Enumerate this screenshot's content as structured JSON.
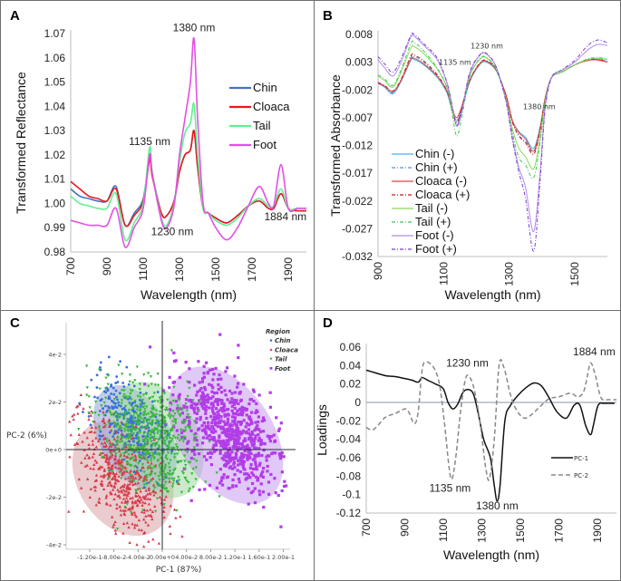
{
  "chart_data": [
    {
      "panel": "A",
      "type": "line",
      "title": "",
      "xlabel": "Wavelength (nm)",
      "ylabel": "Transformed Reflectance",
      "xlim": [
        700,
        2000
      ],
      "ylim": [
        0.98,
        1.07
      ],
      "xticks": [
        "700",
        "900",
        "1100",
        "1300",
        "1500",
        "1700",
        "1900"
      ],
      "yticks": [
        "1.07",
        "1.06",
        "1.05",
        "1.04",
        "1.03",
        "1.02",
        "1.01",
        "1.00",
        "0.99",
        "0.98"
      ],
      "legend_position": "right",
      "annotations": [
        {
          "text": "1380 nm",
          "x": 1380,
          "y": 1.071
        },
        {
          "text": "1135 nm",
          "x": 1135,
          "y": 1.024
        },
        {
          "text": "1230 nm",
          "x": 1260,
          "y": 0.987
        },
        {
          "text": "1884 nm",
          "x": 1884,
          "y": 0.993
        }
      ],
      "x": [
        700,
        750,
        800,
        850,
        900,
        950,
        1000,
        1050,
        1100,
        1135,
        1150,
        1200,
        1230,
        1270,
        1300,
        1330,
        1360,
        1380,
        1400,
        1430,
        1460,
        1500,
        1560,
        1620,
        1680,
        1740,
        1790,
        1820,
        1860,
        1900,
        1950,
        2000
      ],
      "series": [
        {
          "name": "Chin",
          "color": "#4472c4",
          "style": "solid",
          "values": [
            1.006,
            1.003,
            1.002,
            1.001,
            1.001,
            1.007,
            0.991,
            0.996,
            1.002,
            1.019,
            1.012,
            0.996,
            0.995,
            1.001,
            1.013,
            1.02,
            1.022,
            1.03,
            1.015,
            0.998,
            0.996,
            0.994,
            0.992,
            0.995,
            0.999,
            1.001,
            0.998,
            0.998,
            1.004,
            0.998,
            0.997,
            0.997
          ]
        },
        {
          "name": "Cloaca",
          "color": "#e8191c",
          "style": "solid",
          "values": [
            1.009,
            1.006,
            1.003,
            1.002,
            1.001,
            1.006,
            0.991,
            0.995,
            1.001,
            1.018,
            1.011,
            0.996,
            0.995,
            1.001,
            1.013,
            1.02,
            1.022,
            1.03,
            1.015,
            0.998,
            0.996,
            0.994,
            0.992,
            0.995,
            0.999,
            1.001,
            0.998,
            0.998,
            1.004,
            0.998,
            0.997,
            0.997
          ]
        },
        {
          "name": "Tail",
          "color": "#5ef28f",
          "style": "solid",
          "values": [
            1.003,
            1.0,
            0.999,
            0.998,
            0.998,
            1.004,
            0.985,
            0.992,
            1.0,
            1.023,
            1.013,
            0.994,
            0.991,
            1.0,
            1.017,
            1.029,
            1.033,
            1.041,
            1.02,
            0.998,
            0.996,
            0.993,
            0.991,
            0.994,
            0.999,
            1.002,
            0.999,
            0.999,
            1.006,
            0.998,
            0.998,
            0.998
          ]
        },
        {
          "name": "Foot",
          "color": "#e54fe5",
          "style": "solid",
          "values": [
            0.993,
            0.992,
            0.991,
            0.991,
            0.991,
            0.998,
            0.982,
            0.99,
            0.998,
            1.02,
            1.012,
            0.993,
            0.99,
            0.999,
            1.02,
            1.035,
            1.05,
            1.068,
            1.035,
            1.0,
            0.996,
            0.99,
            0.985,
            0.99,
            0.999,
            1.007,
            1.0,
            0.999,
            1.016,
            0.998,
            0.998,
            0.998
          ]
        }
      ]
    },
    {
      "panel": "B",
      "type": "line",
      "title": "",
      "xlabel": "Wavelength (nm)",
      "ylabel": "Transformed Absorbance",
      "xlim": [
        900,
        1600
      ],
      "ylim": [
        -0.032,
        0.008
      ],
      "xticks": [
        "900",
        "1100",
        "1300",
        "1500"
      ],
      "yticks": [
        "0.008",
        "0.003",
        "-0.002",
        "-0.007",
        "-0.012",
        "-0.017",
        "-0.022",
        "-0.027",
        "-0.032"
      ],
      "legend_position": "bottom-left",
      "annotations": [
        {
          "text": "1230 nm",
          "x": 1232,
          "y": 0.0055
        },
        {
          "text": "1135 nm",
          "x": 1135,
          "y": 0.0025
        },
        {
          "text": "1380 nm",
          "x": 1392,
          "y": -0.0055
        }
      ],
      "x": [
        900,
        920,
        945,
        970,
        1000,
        1010,
        1040,
        1080,
        1110,
        1125,
        1140,
        1155,
        1180,
        1210,
        1230,
        1260,
        1290,
        1310,
        1330,
        1350,
        1375,
        1395,
        1410,
        1430,
        1460,
        1500,
        1540,
        1570,
        1600
      ],
      "series": [
        {
          "name": "Chin (-)",
          "color": "#3fb7e8",
          "style": "solid",
          "values": [
            -0.0008,
            -0.0015,
            -0.0027,
            -0.0005,
            0.0033,
            0.0035,
            0.0025,
            0.0003,
            -0.0025,
            -0.0055,
            -0.0075,
            -0.0055,
            -0.0005,
            0.0025,
            0.003,
            0.0015,
            -0.003,
            -0.0075,
            -0.0095,
            -0.0105,
            -0.0125,
            -0.0085,
            -0.0035,
            0.0003,
            0.0012,
            0.0025,
            0.0035,
            0.0035,
            0.003
          ]
        },
        {
          "name": "Chin (+)",
          "color": "#5b8fd6",
          "style": "dashdot",
          "values": [
            -0.0006,
            -0.0013,
            -0.0025,
            -0.0003,
            0.0038,
            0.004,
            0.003,
            0.0006,
            -0.0023,
            -0.0055,
            -0.008,
            -0.0058,
            -0.0004,
            0.0027,
            0.0032,
            0.0016,
            -0.003,
            -0.0077,
            -0.0102,
            -0.0112,
            -0.0133,
            -0.009,
            -0.0036,
            0.0003,
            0.0012,
            0.0025,
            0.0035,
            0.0036,
            0.0032
          ]
        },
        {
          "name": "Cloaca (-)",
          "color": "#e84545",
          "style": "solid",
          "values": [
            -0.0008,
            -0.0013,
            -0.0023,
            -0.0003,
            0.0035,
            0.0037,
            0.0027,
            0.0005,
            -0.0022,
            -0.0052,
            -0.007,
            -0.005,
            -0.0003,
            0.0027,
            0.0032,
            0.0016,
            -0.0028,
            -0.0075,
            -0.0097,
            -0.0108,
            -0.013,
            -0.0088,
            -0.0035,
            0.0003,
            0.0012,
            0.0025,
            0.0033,
            0.0034,
            0.003
          ]
        },
        {
          "name": "Cloaca (+)",
          "color": "#c61a1a",
          "style": "dashdot",
          "values": [
            -0.0007,
            -0.0012,
            -0.0022,
            -0.0001,
            0.0041,
            0.0043,
            0.0032,
            0.0008,
            -0.0021,
            -0.0053,
            -0.0078,
            -0.0055,
            -0.0003,
            0.0028,
            0.0033,
            0.0017,
            -0.0029,
            -0.0078,
            -0.0103,
            -0.0115,
            -0.0136,
            -0.0092,
            -0.0036,
            0.0003,
            0.0012,
            0.0025,
            0.0034,
            0.0035,
            0.0031
          ]
        },
        {
          "name": "Tail (-)",
          "color": "#8bd85a",
          "style": "solid",
          "values": [
            0.0005,
            -0.0003,
            -0.0015,
            0.0012,
            0.0055,
            0.0058,
            0.0045,
            0.0018,
            -0.0015,
            -0.0052,
            -0.0085,
            -0.006,
            0.0005,
            0.0035,
            0.0038,
            0.0018,
            -0.0035,
            -0.009,
            -0.0125,
            -0.014,
            -0.0162,
            -0.0105,
            -0.004,
            0.0003,
            0.0012,
            0.0025,
            0.0035,
            0.0037,
            0.0035
          ]
        },
        {
          "name": "Tail (+)",
          "color": "#3cc95a",
          "style": "dashdot",
          "values": [
            0.0007,
            0.0,
            -0.0012,
            0.0016,
            0.0063,
            0.0066,
            0.005,
            0.002,
            -0.0015,
            -0.0058,
            -0.0103,
            -0.007,
            0.0004,
            0.0036,
            0.0039,
            0.0018,
            -0.0037,
            -0.0097,
            -0.0142,
            -0.0155,
            -0.0178,
            -0.0112,
            -0.0042,
            0.0003,
            0.0012,
            0.0025,
            0.0036,
            0.0038,
            0.0036
          ]
        },
        {
          "name": "Foot (-)",
          "color": "#b48be8",
          "style": "solid",
          "values": [
            0.0035,
            0.002,
            0.0005,
            0.003,
            0.0075,
            0.0077,
            0.006,
            0.0035,
            -0.0007,
            -0.0045,
            -0.0085,
            -0.006,
            0.001,
            0.0042,
            0.0045,
            0.0022,
            -0.0038,
            -0.0105,
            -0.016,
            -0.0195,
            -0.0275,
            -0.0165,
            -0.005,
            0.0003,
            0.0015,
            0.003,
            0.0052,
            0.0062,
            0.006
          ]
        },
        {
          "name": "Foot (+)",
          "color": "#7b3fc8",
          "style": "dashdot",
          "values": [
            0.004,
            0.0027,
            0.0012,
            0.0036,
            0.0078,
            0.008,
            0.0063,
            0.0038,
            -0.0006,
            -0.0045,
            -0.0083,
            -0.0058,
            0.0012,
            0.0043,
            0.0046,
            0.0022,
            -0.004,
            -0.011,
            -0.0168,
            -0.0215,
            -0.031,
            -0.018,
            -0.0055,
            0.0003,
            0.0016,
            0.0033,
            0.006,
            0.007,
            0.0065
          ]
        }
      ]
    },
    {
      "panel": "C",
      "type": "scatter",
      "title": "",
      "xlabel": "PC-1 (87%)",
      "ylabel": "PC-2 (6%)",
      "xlim": [
        -0.126,
        0.202
      ],
      "ylim": [
        -0.042,
        0.052
      ],
      "xticks": [
        {
          "v": -0.12,
          "label": "-1.20e-1"
        },
        {
          "v": -0.08,
          "label": "-8.00e-2"
        },
        {
          "v": -0.04,
          "label": "-4.00e-2"
        },
        {
          "v": 0.0,
          "label": "0.00e+0"
        },
        {
          "v": 0.04,
          "label": "4.00e-2"
        },
        {
          "v": 0.08,
          "label": "8.00e-2"
        },
        {
          "v": 0.12,
          "label": "1.20e-1"
        },
        {
          "v": 0.16,
          "label": "1.60e-1"
        },
        {
          "v": 0.2,
          "label": "2.00e-1"
        }
      ],
      "yticks": [
        {
          "v": 0.04,
          "label": "4e-2"
        },
        {
          "v": 0.02,
          "label": "2e-2"
        },
        {
          "v": 0.0,
          "label": "0e+0"
        },
        {
          "v": -0.02,
          "label": "-2e-2"
        },
        {
          "v": -0.04,
          "label": "-4e-2"
        }
      ],
      "legend_title": "Region",
      "legend_position": "top-right",
      "groups": [
        {
          "name": "Chin",
          "color": "#3b6fe0",
          "marker": "circle",
          "center": [
            -0.055,
            0.012
          ],
          "spread": [
            0.022,
            0.011
          ],
          "count": 260,
          "ellipse": {
            "cx": -0.045,
            "cy": 0.005,
            "rx": 0.058,
            "ry": 0.024,
            "angle": -30,
            "fill": "#8fa3d6"
          }
        },
        {
          "name": "Cloaca",
          "color": "#d63a4a",
          "marker": "triangle-up",
          "center": [
            -0.07,
            -0.01
          ],
          "spread": [
            0.028,
            0.014
          ],
          "count": 520,
          "ellipse": {
            "cx": -0.065,
            "cy": -0.012,
            "rx": 0.075,
            "ry": 0.026,
            "angle": -32,
            "fill": "#d9a0a6"
          }
        },
        {
          "name": "Tail",
          "color": "#38b83a",
          "marker": "triangle-down",
          "center": [
            -0.02,
            0.005
          ],
          "spread": [
            0.035,
            0.013
          ],
          "count": 620,
          "ellipse": {
            "cx": -0.01,
            "cy": 0.004,
            "rx": 0.07,
            "ry": 0.026,
            "angle": -28,
            "fill": "#9fd9a0"
          }
        },
        {
          "name": "Foot",
          "color": "#b23ce8",
          "marker": "square",
          "center": [
            0.11,
            0.008
          ],
          "spread": [
            0.033,
            0.014
          ],
          "count": 720,
          "ellipse": {
            "cx": 0.105,
            "cy": 0.006,
            "rx": 0.078,
            "ry": 0.032,
            "angle": -33,
            "fill": "#c79af0"
          }
        }
      ]
    },
    {
      "panel": "D",
      "type": "line",
      "title": "",
      "xlabel": "Wavelength (nm)",
      "ylabel": "Loadings",
      "xlim": [
        700,
        2000
      ],
      "ylim": [
        -0.12,
        0.06
      ],
      "xticks": [
        "700",
        "900",
        "1100",
        "1300",
        "1500",
        "1700",
        "1900"
      ],
      "yticks": [
        "0.06",
        "0.04",
        "0.02",
        "0",
        "-0.02",
        "-0.04",
        "-0.06",
        "-0.08",
        "-0.1",
        "-0.12"
      ],
      "legend_position": "right",
      "annotations": [
        {
          "text": "1230 nm",
          "x": 1225,
          "y": 0.039
        },
        {
          "text": "1884 nm",
          "x": 1884,
          "y": 0.051
        },
        {
          "text": "1135 nm",
          "x": 1135,
          "y": -0.097
        },
        {
          "text": "1380 nm",
          "x": 1380,
          "y": -0.116
        }
      ],
      "series": [
        {
          "name": "PC-1",
          "color": "#111111",
          "style": "solid",
          "x": [
            700,
            750,
            800,
            850,
            900,
            940,
            970,
            990,
            1020,
            1060,
            1100,
            1125,
            1150,
            1175,
            1200,
            1225,
            1255,
            1280,
            1310,
            1345,
            1365,
            1380,
            1395,
            1420,
            1450,
            1490,
            1530,
            1570,
            1610,
            1650,
            1690,
            1740,
            1780,
            1810,
            1840,
            1865,
            1880,
            1905,
            1940,
            1990
          ],
          "values": [
            0.035,
            0.032,
            0.029,
            0.028,
            0.026,
            0.024,
            0.022,
            0.027,
            0.024,
            0.02,
            0.015,
            0.0,
            -0.007,
            -0.002,
            0.01,
            0.014,
            0.01,
            -0.01,
            -0.04,
            -0.06,
            -0.09,
            -0.107,
            -0.09,
            -0.02,
            -0.003,
            0.008,
            0.016,
            0.021,
            0.018,
            0.005,
            -0.01,
            -0.017,
            -0.003,
            -0.003,
            -0.025,
            -0.035,
            -0.025,
            -0.003,
            -0.001,
            -0.001
          ]
        },
        {
          "name": "PC-2",
          "color": "#888888",
          "style": "dashed",
          "x": [
            700,
            730,
            760,
            800,
            850,
            900,
            920,
            950,
            970,
            990,
            1010,
            1050,
            1080,
            1105,
            1130,
            1145,
            1165,
            1190,
            1215,
            1235,
            1260,
            1290,
            1320,
            1340,
            1365,
            1390,
            1415,
            1450,
            1480,
            1520,
            1560,
            1600,
            1650,
            1700,
            1760,
            1800,
            1830,
            1850,
            1866,
            1890,
            1920,
            1960,
            2000
          ],
          "values": [
            -0.027,
            -0.03,
            -0.025,
            -0.016,
            -0.012,
            -0.007,
            -0.01,
            -0.023,
            -0.01,
            0.035,
            0.044,
            0.038,
            0.02,
            -0.02,
            -0.07,
            -0.083,
            -0.06,
            -0.01,
            0.025,
            0.028,
            0.015,
            -0.02,
            -0.07,
            -0.083,
            -0.04,
            0.04,
            0.038,
            0.008,
            -0.008,
            -0.017,
            -0.013,
            -0.005,
            0.004,
            0.006,
            0.01,
            0.006,
            0.012,
            0.03,
            0.043,
            0.03,
            0.005,
            0.003,
            0.003
          ]
        }
      ]
    }
  ],
  "panels": {
    "A": {
      "letter": "A"
    },
    "B": {
      "letter": "B"
    },
    "C": {
      "letter": "C"
    },
    "D": {
      "letter": "D"
    }
  }
}
